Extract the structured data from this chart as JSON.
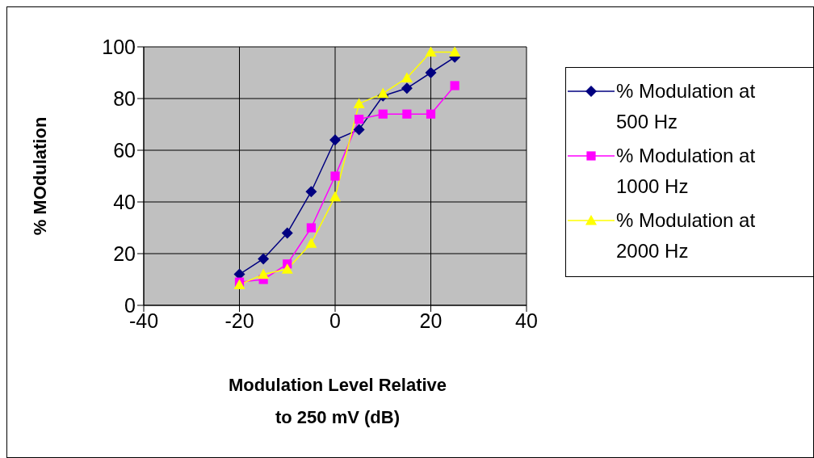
{
  "chart_data": {
    "type": "line",
    "xlabel": "Modulation Level Relative to 250 mV (dB)",
    "ylabel": "% MOdulation",
    "x": [
      -20,
      -15,
      -10,
      -5,
      0,
      5,
      10,
      15,
      20,
      25
    ],
    "series": [
      {
        "name": "% Modulation at 500 Hz",
        "color": "#000080",
        "marker": "diamond",
        "values": [
          12,
          18,
          28,
          44,
          64,
          68,
          81,
          84,
          90,
          96
        ]
      },
      {
        "name": "% Modulation at 1000 Hz",
        "color": "#ff00ff",
        "marker": "square",
        "values": [
          9,
          10,
          16,
          30,
          50,
          72,
          74,
          74,
          74,
          85
        ]
      },
      {
        "name": "% Modulation at 2000 Hz",
        "color": "#ffff00",
        "marker": "triangle",
        "values": [
          8,
          12,
          14,
          24,
          42,
          78,
          82,
          88,
          98,
          98
        ]
      }
    ],
    "xlim": [
      -40,
      40
    ],
    "xticks": [
      -40,
      -20,
      0,
      20,
      40
    ],
    "ylim": [
      0,
      100
    ],
    "yticks": [
      0,
      20,
      40,
      60,
      80,
      100
    ],
    "grid": true,
    "legend": "right",
    "line_style": "solid"
  }
}
